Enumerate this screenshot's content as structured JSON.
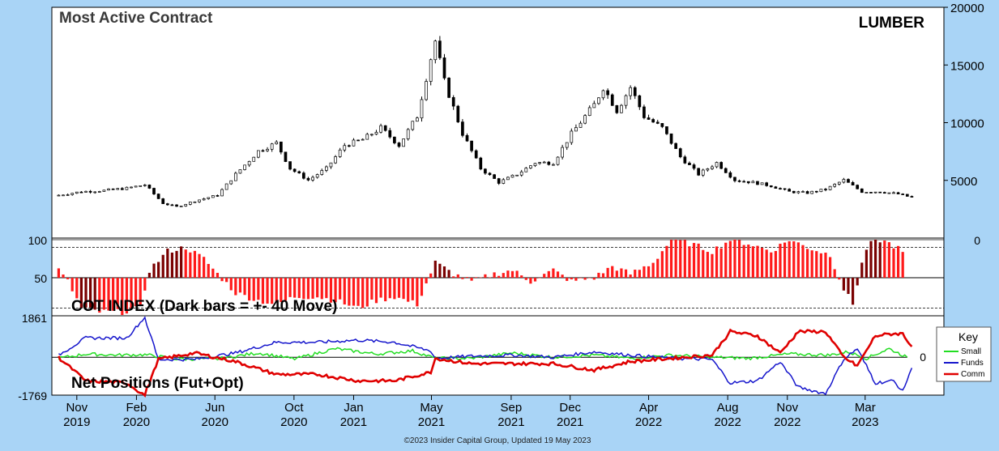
{
  "header": {
    "title": "Most Active Contract",
    "symbol": "LUMBER"
  },
  "footer": {
    "copyright": "©2023 Insider Capital Group, Updated 19 May 2023"
  },
  "colors": {
    "background": "#a9d4f6",
    "panel": "#ffffff",
    "cot_bar": "#ff1a1a",
    "cot_bar_dark": "#7a0000",
    "small": "#22dd22",
    "funds": "#1515cc",
    "comm": "#e00000"
  },
  "chart_data": [
    {
      "type": "candlestick",
      "title": "Most Active Contract",
      "label": "LUMBER",
      "y_ticks": [
        5000,
        10000,
        15000,
        20000
      ],
      "ylim": [
        0,
        20000
      ],
      "x_start": "2019-10-01",
      "x_end": "2023-05-19",
      "interval": "weekly",
      "series": [
        {
          "date": "2019-10-04",
          "close": 3700
        },
        {
          "date": "2019-11-08",
          "close": 4000
        },
        {
          "date": "2019-12-13",
          "close": 4100
        },
        {
          "date": "2020-01-17",
          "close": 4300
        },
        {
          "date": "2020-02-14",
          "close": 4600
        },
        {
          "date": "2020-03-13",
          "close": 3000
        },
        {
          "date": "2020-04-03",
          "close": 2700
        },
        {
          "date": "2020-05-01",
          "close": 3200
        },
        {
          "date": "2020-06-05",
          "close": 3700
        },
        {
          "date": "2020-07-03",
          "close": 5500
        },
        {
          "date": "2020-08-07",
          "close": 7500
        },
        {
          "date": "2020-09-04",
          "close": 8200
        },
        {
          "date": "2020-09-25",
          "close": 6000
        },
        {
          "date": "2020-10-23",
          "close": 5000
        },
        {
          "date": "2020-11-20",
          "close": 6000
        },
        {
          "date": "2020-12-18",
          "close": 8000
        },
        {
          "date": "2021-01-15",
          "close": 8500
        },
        {
          "date": "2021-02-12",
          "close": 9500
        },
        {
          "date": "2021-03-12",
          "close": 8000
        },
        {
          "date": "2021-04-09",
          "close": 10500
        },
        {
          "date": "2021-04-30",
          "close": 15500
        },
        {
          "date": "2021-05-07",
          "close": 17000
        },
        {
          "date": "2021-05-21",
          "close": 13500
        },
        {
          "date": "2021-06-18",
          "close": 9000
        },
        {
          "date": "2021-07-16",
          "close": 6000
        },
        {
          "date": "2021-08-13",
          "close": 4800
        },
        {
          "date": "2021-09-10",
          "close": 5500
        },
        {
          "date": "2021-10-08",
          "close": 6500
        },
        {
          "date": "2021-11-05",
          "close": 6500
        },
        {
          "date": "2021-12-03",
          "close": 9000
        },
        {
          "date": "2022-01-07",
          "close": 11500
        },
        {
          "date": "2022-01-21",
          "close": 13000
        },
        {
          "date": "2022-02-11",
          "close": 11000
        },
        {
          "date": "2022-03-04",
          "close": 13000
        },
        {
          "date": "2022-03-25",
          "close": 10500
        },
        {
          "date": "2022-04-22",
          "close": 9500
        },
        {
          "date": "2022-05-20",
          "close": 7000
        },
        {
          "date": "2022-06-17",
          "close": 5500
        },
        {
          "date": "2022-07-15",
          "close": 6500
        },
        {
          "date": "2022-08-12",
          "close": 5000
        },
        {
          "date": "2022-09-09",
          "close": 4800
        },
        {
          "date": "2022-10-07",
          "close": 4500
        },
        {
          "date": "2022-11-04",
          "close": 4000
        },
        {
          "date": "2022-12-02",
          "close": 3900
        },
        {
          "date": "2022-12-30",
          "close": 4200
        },
        {
          "date": "2023-01-27",
          "close": 5000
        },
        {
          "date": "2023-02-24",
          "close": 4000
        },
        {
          "date": "2023-03-24",
          "close": 4000
        },
        {
          "date": "2023-04-21",
          "close": 3800
        },
        {
          "date": "2023-05-19",
          "close": 3400
        }
      ]
    },
    {
      "type": "bar",
      "label": "COT INDEX (Dark bars = +- 40 Move)",
      "ylim": [
        0,
        100
      ],
      "y_ticks_left": [
        50,
        100
      ],
      "y_ticks_right": [
        0
      ],
      "baseline": 50,
      "reference_lines": [
        100,
        90,
        10,
        0
      ],
      "x_start": "2019-10-01",
      "x_end": "2023-05-19",
      "series": [
        {
          "date": "2019-10-04",
          "value": 60
        },
        {
          "date": "2019-10-18",
          "value": 45
        },
        {
          "date": "2019-11-08",
          "value": 10,
          "dark": true
        },
        {
          "date": "2019-12-06",
          "value": 5
        },
        {
          "date": "2020-01-10",
          "value": 5
        },
        {
          "date": "2020-02-07",
          "value": 10
        },
        {
          "date": "2020-02-21",
          "value": 60,
          "dark": true
        },
        {
          "date": "2020-03-20",
          "value": 85,
          "dark": true
        },
        {
          "date": "2020-04-17",
          "value": 90
        },
        {
          "date": "2020-05-15",
          "value": 75
        },
        {
          "date": "2020-06-05",
          "value": 55
        },
        {
          "date": "2020-07-03",
          "value": 30
        },
        {
          "date": "2020-08-07",
          "value": 20
        },
        {
          "date": "2020-09-04",
          "value": 15
        },
        {
          "date": "2020-10-02",
          "value": 25
        },
        {
          "date": "2020-11-06",
          "value": 25
        },
        {
          "date": "2020-12-04",
          "value": 20
        },
        {
          "date": "2021-01-08",
          "value": 10
        },
        {
          "date": "2021-02-05",
          "value": 20
        },
        {
          "date": "2021-03-05",
          "value": 25
        },
        {
          "date": "2021-04-09",
          "value": 15
        },
        {
          "date": "2021-05-07",
          "value": 70,
          "dark": true
        },
        {
          "date": "2021-06-04",
          "value": 55
        },
        {
          "date": "2021-07-02",
          "value": 45
        },
        {
          "date": "2021-08-06",
          "value": 55
        },
        {
          "date": "2021-09-03",
          "value": 60
        },
        {
          "date": "2021-10-01",
          "value": 45
        },
        {
          "date": "2021-11-05",
          "value": 60
        },
        {
          "date": "2021-12-03",
          "value": 45
        },
        {
          "date": "2022-01-07",
          "value": 50
        },
        {
          "date": "2022-02-04",
          "value": 65
        },
        {
          "date": "2022-03-04",
          "value": 55
        },
        {
          "date": "2022-04-08",
          "value": 70
        },
        {
          "date": "2022-05-06",
          "value": 100
        },
        {
          "date": "2022-06-03",
          "value": 95
        },
        {
          "date": "2022-07-08",
          "value": 85
        },
        {
          "date": "2022-08-05",
          "value": 100
        },
        {
          "date": "2022-09-02",
          "value": 95
        },
        {
          "date": "2022-10-07",
          "value": 85
        },
        {
          "date": "2022-11-04",
          "value": 100
        },
        {
          "date": "2022-12-02",
          "value": 90
        },
        {
          "date": "2023-01-06",
          "value": 80
        },
        {
          "date": "2023-01-27",
          "value": 35,
          "dark": true
        },
        {
          "date": "2023-02-10",
          "value": 15,
          "dark": true
        },
        {
          "date": "2023-02-24",
          "value": 70,
          "dark": true
        },
        {
          "date": "2023-03-10",
          "value": 100,
          "dark": true
        },
        {
          "date": "2023-03-31",
          "value": 95
        },
        {
          "date": "2023-04-21",
          "value": 90
        },
        {
          "date": "2023-05-05",
          "value": 75
        }
      ]
    },
    {
      "type": "line",
      "label": "Net Positions (Fut+Opt)",
      "ylim": [
        -1769,
        1861
      ],
      "y_ticks_left": [
        -1769,
        1861
      ],
      "y_ticks_right": [
        0
      ],
      "legend_title": "Key",
      "legend_position": "right",
      "x_start": "2019-10-01",
      "x_end": "2023-05-19",
      "series": [
        {
          "name": "Small",
          "points": [
            [
              "2019-10-04",
              -50
            ],
            [
              "2019-11-15",
              150
            ],
            [
              "2020-01-03",
              100
            ],
            [
              "2020-02-14",
              120
            ],
            [
              "2020-04-03",
              -80
            ],
            [
              "2020-06-05",
              -80
            ],
            [
              "2020-08-07",
              200
            ],
            [
              "2020-10-02",
              -80
            ],
            [
              "2020-12-04",
              400
            ],
            [
              "2021-02-05",
              150
            ],
            [
              "2021-04-02",
              300
            ],
            [
              "2021-05-07",
              -50
            ],
            [
              "2021-07-02",
              -50
            ],
            [
              "2021-09-03",
              200
            ],
            [
              "2021-11-05",
              0
            ],
            [
              "2022-01-07",
              100
            ],
            [
              "2022-03-04",
              -50
            ],
            [
              "2022-05-06",
              100
            ],
            [
              "2022-07-08",
              0
            ],
            [
              "2022-09-02",
              -50
            ],
            [
              "2022-11-04",
              150
            ],
            [
              "2023-01-06",
              100
            ],
            [
              "2023-02-03",
              250
            ],
            [
              "2023-03-03",
              -50
            ],
            [
              "2023-04-07",
              400
            ],
            [
              "2023-05-05",
              0
            ]
          ]
        },
        {
          "name": "Funds",
          "points": [
            [
              "2019-10-04",
              100
            ],
            [
              "2019-11-15",
              900
            ],
            [
              "2020-01-17",
              900
            ],
            [
              "2020-02-14",
              1861
            ],
            [
              "2020-03-06",
              -100
            ],
            [
              "2020-05-01",
              -100
            ],
            [
              "2020-07-03",
              200
            ],
            [
              "2020-09-04",
              700
            ],
            [
              "2020-11-06",
              700
            ],
            [
              "2021-01-08",
              800
            ],
            [
              "2021-03-05",
              700
            ],
            [
              "2021-04-30",
              300
            ],
            [
              "2021-05-07",
              -50
            ],
            [
              "2021-07-02",
              50
            ],
            [
              "2021-09-03",
              100
            ],
            [
              "2021-11-05",
              0
            ],
            [
              "2022-01-07",
              250
            ],
            [
              "2022-03-04",
              100
            ],
            [
              "2022-05-06",
              -50
            ],
            [
              "2022-07-08",
              -100
            ],
            [
              "2022-08-05",
              -1200
            ],
            [
              "2022-09-16",
              -1100
            ],
            [
              "2022-10-21",
              -200
            ],
            [
              "2022-11-18",
              -1400
            ],
            [
              "2022-12-30",
              -1700
            ],
            [
              "2023-01-27",
              -100
            ],
            [
              "2023-02-17",
              400
            ],
            [
              "2023-03-17",
              -1200
            ],
            [
              "2023-04-14",
              -1100
            ],
            [
              "2023-04-28",
              -1600
            ],
            [
              "2023-05-12",
              -500
            ]
          ]
        },
        {
          "name": "Comm",
          "points": [
            [
              "2019-10-04",
              0
            ],
            [
              "2019-11-15",
              -1100
            ],
            [
              "2020-01-17",
              -1200
            ],
            [
              "2020-02-14",
              -1769
            ],
            [
              "2020-03-06",
              -100
            ],
            [
              "2020-05-01",
              200
            ],
            [
              "2020-07-03",
              -200
            ],
            [
              "2020-09-04",
              -800
            ],
            [
              "2020-11-06",
              -800
            ],
            [
              "2021-01-08",
              -1100
            ],
            [
              "2021-03-05",
              -1100
            ],
            [
              "2021-04-30",
              -700
            ],
            [
              "2021-05-07",
              -50
            ],
            [
              "2021-07-02",
              -300
            ],
            [
              "2021-09-03",
              -300
            ],
            [
              "2021-11-05",
              -300
            ],
            [
              "2022-01-07",
              -600
            ],
            [
              "2022-03-04",
              -200
            ],
            [
              "2022-05-06",
              -50
            ],
            [
              "2022-07-08",
              100
            ],
            [
              "2022-08-05",
              1200
            ],
            [
              "2022-09-16",
              1000
            ],
            [
              "2022-10-21",
              200
            ],
            [
              "2022-11-18",
              1200
            ],
            [
              "2022-12-30",
              1200
            ],
            [
              "2023-01-27",
              0
            ],
            [
              "2023-02-17",
              -400
            ],
            [
              "2023-03-17",
              1000
            ],
            [
              "2023-04-14",
              1100
            ],
            [
              "2023-04-28",
              1100
            ],
            [
              "2023-05-12",
              500
            ]
          ]
        }
      ]
    }
  ],
  "x_axis": {
    "labels": [
      {
        "month": "Nov",
        "year": "2019",
        "date": "2019-11-01"
      },
      {
        "month": "Feb",
        "year": "2020",
        "date": "2020-02-01"
      },
      {
        "month": "Jun",
        "year": "2020",
        "date": "2020-06-01"
      },
      {
        "month": "Oct",
        "year": "2020",
        "date": "2020-10-01"
      },
      {
        "month": "Jan",
        "year": "2021",
        "date": "2021-01-01"
      },
      {
        "month": "May",
        "year": "2021",
        "date": "2021-05-01"
      },
      {
        "month": "Sep",
        "year": "2021",
        "date": "2021-09-01"
      },
      {
        "month": "Dec",
        "year": "2021",
        "date": "2021-12-01"
      },
      {
        "month": "Apr",
        "year": "2022",
        "date": "2022-04-01"
      },
      {
        "month": "Aug",
        "year": "2022",
        "date": "2022-08-01"
      },
      {
        "month": "Nov",
        "year": "2022",
        "date": "2022-11-01"
      },
      {
        "month": "Mar",
        "year": "2023",
        "date": "2023-03-01"
      }
    ]
  }
}
